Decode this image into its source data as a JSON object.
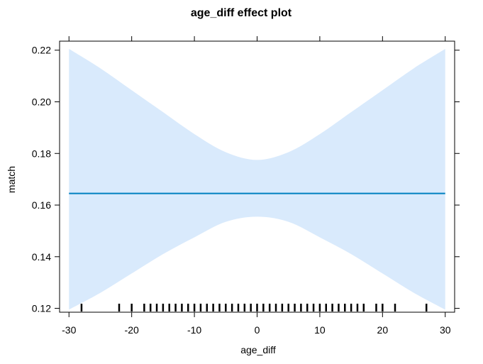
{
  "chart_data": {
    "type": "line",
    "title": "age_diff effect plot",
    "xlabel": "age_diff",
    "ylabel": "match",
    "xlim": [
      -31.5,
      31.5
    ],
    "ylim": [
      0.1185,
      0.2235
    ],
    "xticks": [
      -30,
      -20,
      -10,
      0,
      10,
      20,
      30
    ],
    "xtick_labels": [
      "-30",
      "-20",
      "-10",
      "0",
      "10",
      "20",
      "30"
    ],
    "yticks": [
      0.12,
      0.14,
      0.16,
      0.18,
      0.2,
      0.22
    ],
    "ytick_labels": [
      "0.12",
      "0.14",
      "0.16",
      "0.18",
      "0.20",
      "0.22"
    ],
    "fit": {
      "x": [
        -30,
        30
      ],
      "y": [
        0.1645,
        0.1645
      ]
    },
    "band": {
      "x": [
        -30,
        -25,
        -20,
        -15,
        -10,
        -5,
        0,
        5,
        10,
        15,
        20,
        25,
        30
      ],
      "upper": [
        0.2205,
        0.213,
        0.2045,
        0.196,
        0.1875,
        0.1805,
        0.1775,
        0.1805,
        0.1875,
        0.196,
        0.2045,
        0.213,
        0.2205
      ],
      "lower": [
        0.1195,
        0.126,
        0.1335,
        0.141,
        0.1475,
        0.1535,
        0.1555,
        0.1535,
        0.1475,
        0.141,
        0.1335,
        0.126,
        0.1195
      ]
    },
    "rug_x": [
      -28,
      -22,
      -20,
      -18,
      -17,
      -16,
      -15,
      -14,
      -13,
      -12,
      -11,
      -10,
      -9,
      -8,
      -7,
      -6,
      -5,
      -4,
      -3,
      -2,
      -1,
      0,
      1,
      2,
      3,
      4,
      5,
      6,
      7,
      8,
      9,
      10,
      11,
      12,
      13,
      14,
      15,
      16,
      17,
      19,
      20,
      22,
      27
    ],
    "colors": {
      "line": "#0080C0",
      "band": "#D9EAFC",
      "axis": "#000000"
    }
  }
}
